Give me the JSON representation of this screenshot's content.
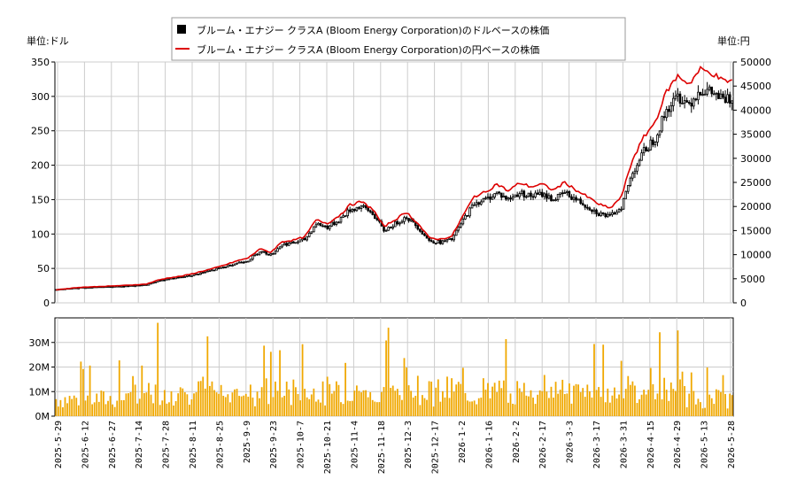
{
  "chart_data": {
    "type": "candlestick+line+bar",
    "legend": {
      "placement": "top-center",
      "entries": [
        {
          "name": "ブルーム・エナジー クラスA (Bloom Energy Corporation)のドルベースの株価",
          "color": "#000000",
          "marker": "square"
        },
        {
          "name": "ブルーム・エナジー クラスA (Bloom Energy Corporation)の円ベースの株価",
          "color": "#dd0000",
          "marker": "line"
        }
      ]
    },
    "left_unit_label": "単位:ドル",
    "right_unit_label": "単位:円",
    "price_axis_usd": {
      "range": [
        0,
        350
      ],
      "ticks": [
        "0",
        "50",
        "100",
        "150",
        "200",
        "250",
        "300",
        "350"
      ]
    },
    "price_axis_jpy": {
      "range": [
        0,
        50000
      ],
      "ticks": [
        "0",
        "5000",
        "10000",
        "15000",
        "20000",
        "25000",
        "30000",
        "35000",
        "40000",
        "45000",
        "50000"
      ]
    },
    "volume_axis": {
      "range": [
        0,
        40000000
      ],
      "ticks": [
        "0M",
        "10M",
        "20M",
        "30M"
      ]
    },
    "x_tick_labels": [
      "2025-5-29",
      "2025-6-12",
      "2025-6-27",
      "2025-7-14",
      "2025-7-28",
      "2025-8-11",
      "2025-8-25",
      "2025-9-9",
      "2025-9-23",
      "2025-10-7",
      "2025-10-21",
      "2025-11-4",
      "2025-11-18",
      "2025-12-3",
      "2025-12-17",
      "2026-1-2",
      "2026-1-16",
      "2026-2-2",
      "2026-2-17",
      "2026-3-3",
      "2026-3-17",
      "2026-3-31",
      "2026-4-15",
      "2026-4-29",
      "2026-5-13",
      "2026-5-28"
    ],
    "grid": true,
    "usd_price_anchors": [
      [
        0,
        19
      ],
      [
        10,
        22
      ],
      [
        20,
        23
      ],
      [
        30,
        24
      ],
      [
        40,
        26
      ],
      [
        45,
        32
      ],
      [
        50,
        35
      ],
      [
        55,
        37
      ],
      [
        60,
        40
      ],
      [
        65,
        44
      ],
      [
        70,
        48
      ],
      [
        75,
        53
      ],
      [
        80,
        58
      ],
      [
        85,
        62
      ],
      [
        90,
        75
      ],
      [
        95,
        70
      ],
      [
        100,
        85
      ],
      [
        105,
        87
      ],
      [
        110,
        92
      ],
      [
        115,
        115
      ],
      [
        120,
        110
      ],
      [
        125,
        120
      ],
      [
        130,
        135
      ],
      [
        135,
        140
      ],
      [
        140,
        130
      ],
      [
        145,
        105
      ],
      [
        150,
        115
      ],
      [
        155,
        125
      ],
      [
        160,
        110
      ],
      [
        165,
        90
      ],
      [
        170,
        88
      ],
      [
        175,
        92
      ],
      [
        180,
        120
      ],
      [
        185,
        145
      ],
      [
        190,
        150
      ],
      [
        195,
        160
      ],
      [
        200,
        150
      ],
      [
        205,
        160
      ],
      [
        210,
        155
      ],
      [
        215,
        158
      ],
      [
        220,
        150
      ],
      [
        225,
        160
      ],
      [
        230,
        150
      ],
      [
        235,
        140
      ],
      [
        240,
        130
      ],
      [
        245,
        125
      ],
      [
        250,
        140
      ],
      [
        255,
        190
      ],
      [
        260,
        220
      ],
      [
        265,
        240
      ],
      [
        270,
        280
      ],
      [
        275,
        300
      ],
      [
        280,
        290
      ],
      [
        285,
        310
      ],
      [
        290,
        305
      ],
      [
        295,
        295
      ]
    ],
    "jpy_line_anchors": [
      [
        0,
        2700
      ],
      [
        10,
        3200
      ],
      [
        20,
        3400
      ],
      [
        30,
        3600
      ],
      [
        40,
        3900
      ],
      [
        45,
        4700
      ],
      [
        50,
        5200
      ],
      [
        55,
        5500
      ],
      [
        60,
        6000
      ],
      [
        65,
        6600
      ],
      [
        70,
        7200
      ],
      [
        75,
        7900
      ],
      [
        80,
        8700
      ],
      [
        85,
        9300
      ],
      [
        90,
        11200
      ],
      [
        95,
        10500
      ],
      [
        100,
        12700
      ],
      [
        105,
        13000
      ],
      [
        110,
        13700
      ],
      [
        115,
        17200
      ],
      [
        120,
        16500
      ],
      [
        125,
        18000
      ],
      [
        130,
        20300
      ],
      [
        135,
        21000
      ],
      [
        140,
        19500
      ],
      [
        145,
        15800
      ],
      [
        150,
        17300
      ],
      [
        155,
        18800
      ],
      [
        160,
        16500
      ],
      [
        165,
        13500
      ],
      [
        170,
        13200
      ],
      [
        175,
        13800
      ],
      [
        180,
        18100
      ],
      [
        185,
        22100
      ],
      [
        190,
        23000
      ],
      [
        195,
        24700
      ],
      [
        200,
        23200
      ],
      [
        205,
        24900
      ],
      [
        210,
        24100
      ],
      [
        215,
        24600
      ],
      [
        220,
        23400
      ],
      [
        225,
        25000
      ],
      [
        230,
        23400
      ],
      [
        235,
        22000
      ],
      [
        240,
        20500
      ],
      [
        245,
        19600
      ],
      [
        250,
        22000
      ],
      [
        255,
        29800
      ],
      [
        260,
        34400
      ],
      [
        265,
        37600
      ],
      [
        270,
        43900
      ],
      [
        275,
        47100
      ],
      [
        280,
        45500
      ],
      [
        285,
        48500
      ],
      [
        290,
        47700
      ],
      [
        295,
        46100
      ]
    ],
    "volume_note": "daily volume in shares, 0M–36M"
  }
}
